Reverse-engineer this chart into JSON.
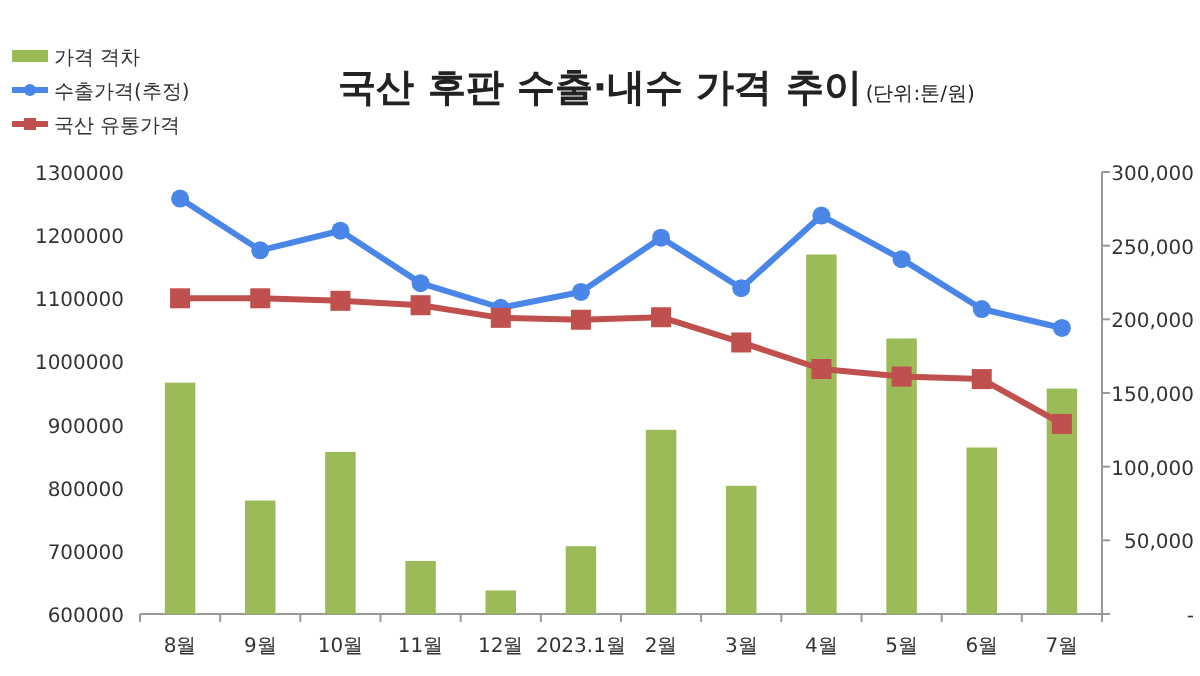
{
  "chart_data": {
    "type": "bar",
    "title": "국산 후판 수출·내수 가격 추이",
    "subtitle": "(단위:톤/원)",
    "categories": [
      "8월",
      "9월",
      "10월",
      "11월",
      "12월",
      "2023.1월",
      "2월",
      "3월",
      "4월",
      "5월",
      "6월",
      "7월"
    ],
    "series": [
      {
        "name": "가격 격차",
        "axis": "y2",
        "color": "#9bbb59",
        "values": [
          157000,
          77000,
          110000,
          36000,
          16000,
          46000,
          125000,
          87000,
          244000,
          187000,
          113000,
          153000
        ]
      },
      {
        "name": "수출가격(추정)",
        "type": "line",
        "marker": "circle",
        "color": "#4a86e8",
        "values": [
          1258000,
          1176000,
          1207000,
          1124000,
          1085000,
          1110000,
          1196000,
          1116000,
          1231000,
          1162000,
          1083000,
          1053000
        ]
      },
      {
        "name": "국산 유통가격",
        "type": "line",
        "marker": "square",
        "color": "#c0504d",
        "values": [
          1100000,
          1100000,
          1096000,
          1089000,
          1069000,
          1066000,
          1070000,
          1030000,
          988000,
          976000,
          972000,
          901000
        ]
      }
    ],
    "ylim": [
      600000,
      1300000
    ],
    "yticks": [
      600000,
      700000,
      800000,
      900000,
      1000000,
      1100000,
      1200000,
      1300000
    ],
    "y2lim": [
      0,
      300000
    ],
    "y2ticks": [
      {
        "value": 0,
        "label": "-"
      },
      {
        "value": 50000,
        "label": "50,000"
      },
      {
        "value": 100000,
        "label": "100,000"
      },
      {
        "value": 150000,
        "label": "150,000"
      },
      {
        "value": 200000,
        "label": "200,000"
      },
      {
        "value": 250000,
        "label": "250,000"
      },
      {
        "value": 300000,
        "label": "300,000"
      }
    ],
    "legend": "top left",
    "grid": false
  }
}
